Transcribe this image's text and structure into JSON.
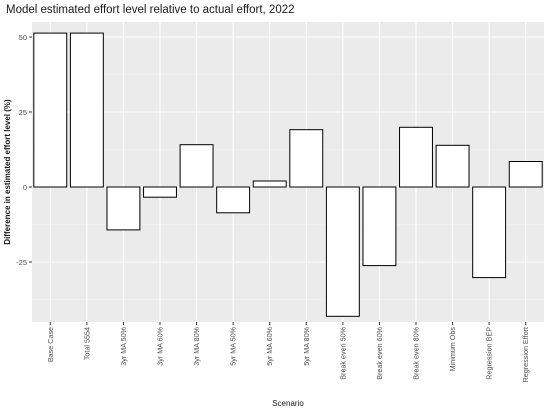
{
  "chart_data": {
    "type": "bar",
    "title": "Model estimated effort level relative to actual effort, 2022",
    "xlabel": "Scenario",
    "ylabel": "Difference in estimated effort level (%)",
    "ylim": [
      -45,
      55
    ],
    "yticks": [
      -25,
      0,
      25,
      50
    ],
    "ytick_labels": [
      "-25",
      "0",
      "25",
      "50"
    ],
    "grid": true,
    "legend": "none",
    "categories": [
      "Base Case",
      "Total 5554",
      "3yr MA 50%",
      "3yr MA 60%",
      "3yr MA 80%",
      "5yr MA 50%",
      "5yr MA 60%",
      "5yr MA 80%",
      "Break even 50%",
      "Break even 60%",
      "Break even 80%",
      "Minimum Obs",
      "Regression BEP",
      "Regression Effort"
    ],
    "values": [
      51.3,
      51.3,
      -14.3,
      -3.4,
      14.1,
      -8.6,
      2.0,
      19.1,
      -43.1,
      -26.2,
      19.9,
      13.9,
      -30.2,
      8.5
    ],
    "colors": {
      "panel": "#ebebeb",
      "grid_major": "#ffffff",
      "grid_minor": "#f4f4f4",
      "bar_fill": "#ffffff",
      "bar_stroke": "#000000"
    }
  }
}
